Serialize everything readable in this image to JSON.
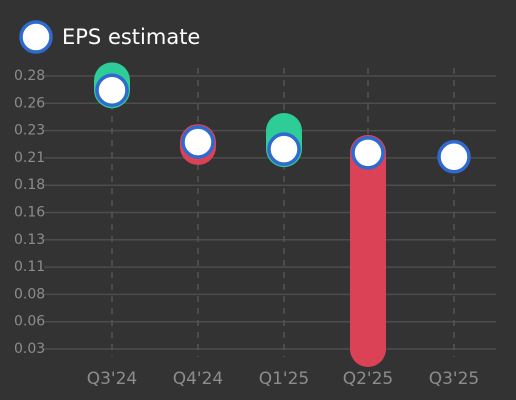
{
  "chart_data": {
    "type": "eps",
    "categories": [
      "Q3'24",
      "Q4'24",
      "Q1'25",
      "Q2'25",
      "Q3'25"
    ],
    "series": [
      {
        "name": "EPS estimate",
        "color": "#2f6ad0",
        "values": [
          0.267,
          0.2195,
          0.213,
          0.2096,
          0.206
        ]
      }
    ],
    "actual_values": [
      0.276,
      0.215,
      0.2296,
      0.03,
      null
    ],
    "beat_color": "#2ecc96",
    "miss_color": "#db4256",
    "ylim": [
      0.03,
      0.28
    ],
    "yticks": [
      {
        "value": 0.03,
        "label": "0.03"
      },
      {
        "value": 0.055,
        "label": "0.06"
      },
      {
        "value": 0.08,
        "label": "0.08"
      },
      {
        "value": 0.105,
        "label": "0.11"
      },
      {
        "value": 0.13,
        "label": "0.13"
      },
      {
        "value": 0.155,
        "label": "0.16"
      },
      {
        "value": 0.18,
        "label": "0.18"
      },
      {
        "value": 0.205,
        "label": "0.21"
      },
      {
        "value": 0.23,
        "label": "0.23"
      },
      {
        "value": 0.255,
        "label": "0.26"
      },
      {
        "value": 0.28,
        "label": "0.28"
      }
    ],
    "grid": true
  }
}
